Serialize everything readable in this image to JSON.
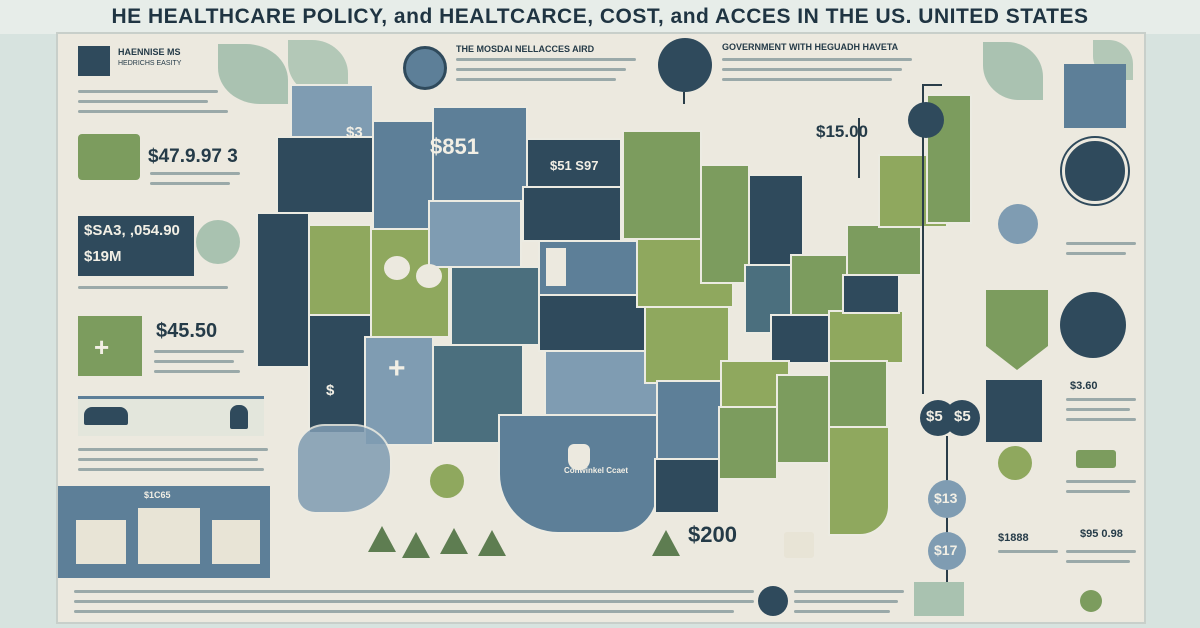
{
  "title": "HE HEALTHCARE POLICY, and HEALTCARCE, COST, and ACCES IN THE US. UNITED STATES",
  "left": {
    "header": "HAENNISE MS",
    "subheader": "HEDRICHS EASITY",
    "value_1": "$47.9.97 3",
    "value_2": "$SA3, ,054.90",
    "value_3": "$19M",
    "value_4": "$45.50",
    "bottom_label": "$1C65"
  },
  "center": {
    "header_1": "THE MOSDAI NELLACCES AIRD",
    "header_2": "GOVERNMENT WITH HEGUADH HAVETA",
    "map_value_1": "$851",
    "map_value_2": "$15.00",
    "map_value_3": "$200",
    "map_value_4": "$3",
    "map_value_5": "$",
    "map_label_ne": "$51 S97",
    "map_label_sw": "Conwinkel Ccaet"
  },
  "right": {
    "value_1": "$3.60",
    "value_2": "$5",
    "value_3": "$5",
    "value_4": "$13",
    "value_5": "$17",
    "value_6": "$1888",
    "value_7": "$95 0.98"
  },
  "colors": {
    "dark_blue": "#2f4a5c",
    "mid_blue": "#5d7f98",
    "light_blue": "#7f9cb2",
    "green": "#7c9c5e",
    "background": "#ece9df"
  }
}
